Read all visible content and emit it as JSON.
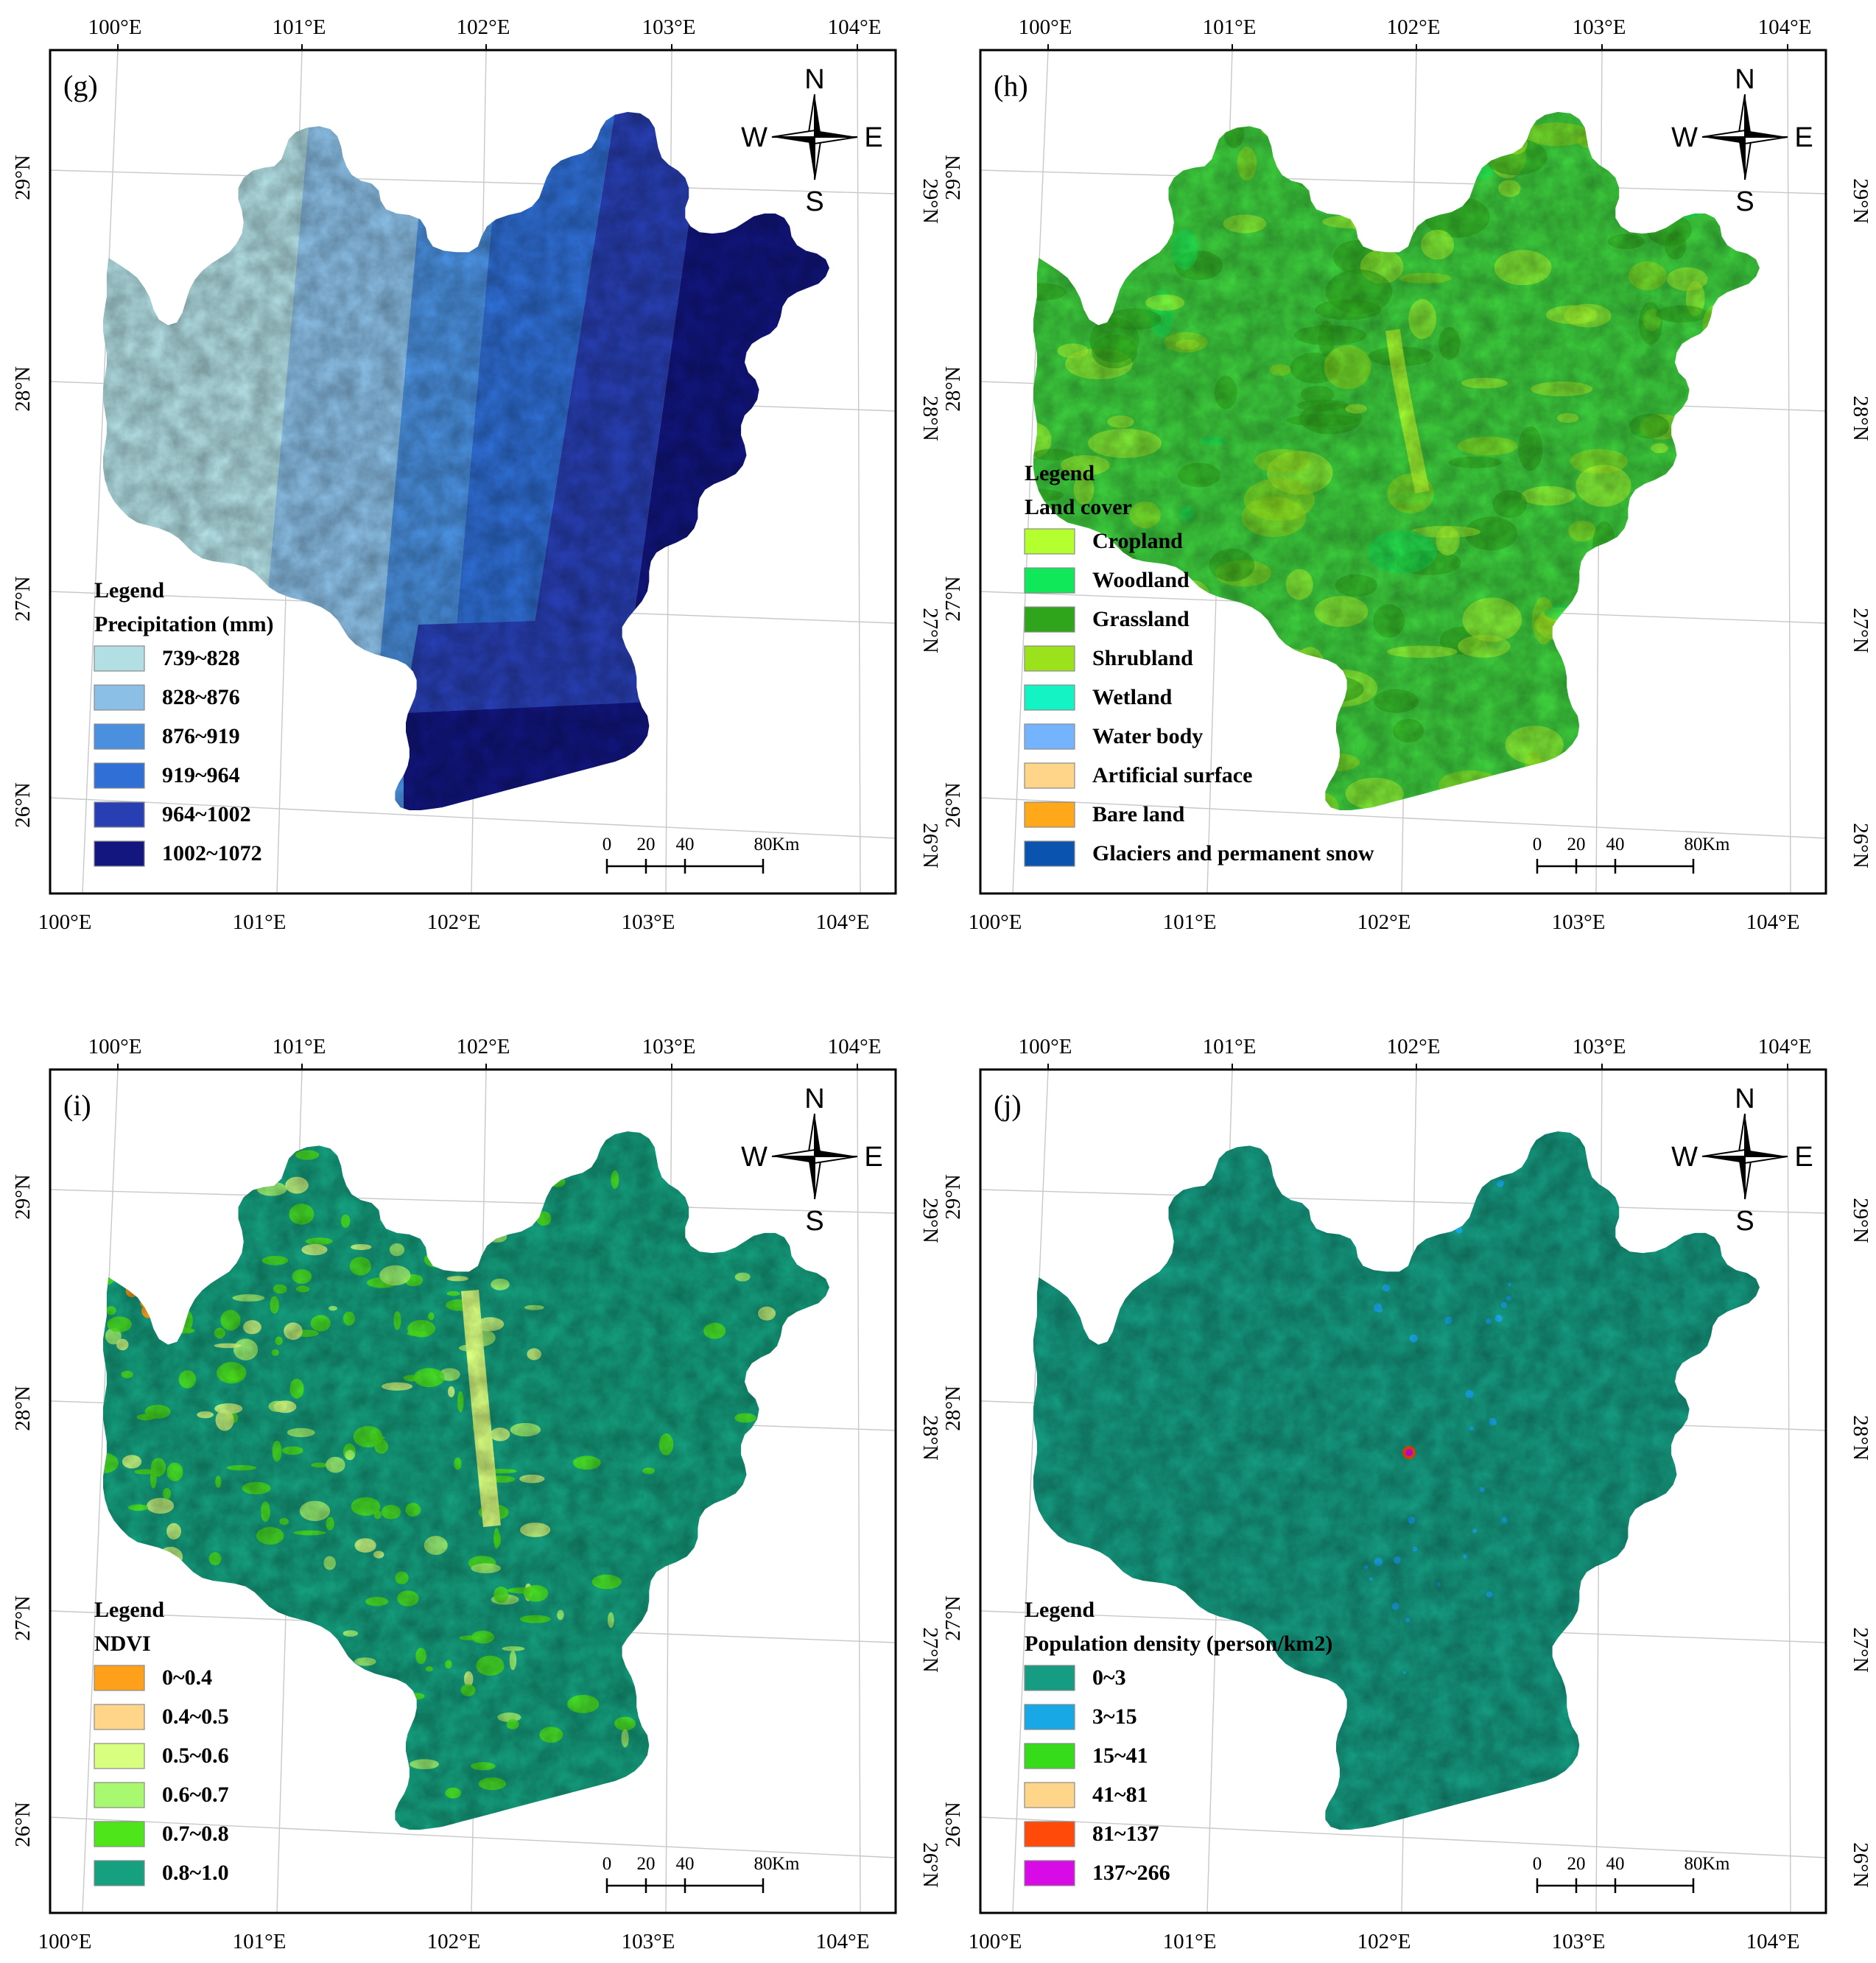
{
  "tick_labels": {
    "lon": [
      "100°E",
      "101°E",
      "102°E",
      "103°E",
      "104°E"
    ],
    "lat": [
      "26°N",
      "27°N",
      "28°N",
      "29°N"
    ]
  },
  "compass": {
    "n": "N",
    "s": "S",
    "e": "E",
    "w": "W"
  },
  "scale_bar": {
    "labels": [
      "0",
      "20",
      "40",
      "80"
    ],
    "unit": "Km"
  },
  "panels": [
    {
      "id": "g",
      "label": "(g)",
      "legend_heading": "Legend",
      "legend_title": "Precipitation  (mm)",
      "fill_pattern": "precipitation",
      "legend": [
        {
          "label": "739~828",
          "color": "#b2dfe4"
        },
        {
          "label": "828~876",
          "color": "#8bbfe6"
        },
        {
          "label": "876~919",
          "color": "#4a90df"
        },
        {
          "label": "919~964",
          "color": "#2f6fd6"
        },
        {
          "label": "964~1002",
          "color": "#283fb3"
        },
        {
          "label": "1002~1072",
          "color": "#12167e"
        }
      ]
    },
    {
      "id": "h",
      "label": "(h)",
      "legend_heading": "Legend",
      "legend_title": "Land cover",
      "fill_pattern": "landcover",
      "legend": [
        {
          "label": "Cropland",
          "color": "#b4ff2e"
        },
        {
          "label": "Woodland",
          "color": "#10e85a"
        },
        {
          "label": "Grassland",
          "color": "#2ea51a"
        },
        {
          "label": "Shrubland",
          "color": "#9be21c"
        },
        {
          "label": "Wetland",
          "color": "#12f4c4"
        },
        {
          "label": "Water body",
          "color": "#74b4ff"
        },
        {
          "label": "Artificial surface",
          "color": "#ffd58a"
        },
        {
          "label": "Bare land",
          "color": "#ffa81a"
        },
        {
          "label": "Glaciers and permanent snow",
          "color": "#0a54b0"
        }
      ]
    },
    {
      "id": "i",
      "label": "(i)",
      "legend_heading": "Legend",
      "legend_title": "NDVI",
      "fill_pattern": "ndvi",
      "legend": [
        {
          "label": "0~0.4",
          "color": "#ffa01a"
        },
        {
          "label": "0.4~0.5",
          "color": "#ffd58a"
        },
        {
          "label": "0.5~0.6",
          "color": "#d8ff80"
        },
        {
          "label": "0.6~0.7",
          "color": "#a8f870"
        },
        {
          "label": "0.7~0.8",
          "color": "#4ee61a"
        },
        {
          "label": "0.8~1.0",
          "color": "#15a07f"
        }
      ]
    },
    {
      "id": "j",
      "label": "(j)",
      "legend_heading": "Legend",
      "legend_title": "Population density  (person/km2)",
      "fill_pattern": "population",
      "legend": [
        {
          "label": "0~3",
          "color": "#169c82"
        },
        {
          "label": "3~15",
          "color": "#18a8e6"
        },
        {
          "label": "15~41",
          "color": "#36dc1a"
        },
        {
          "label": "41~81",
          "color": "#ffd58a"
        },
        {
          "label": "81~137",
          "color": "#ff4a0a"
        },
        {
          "label": "137~266",
          "color": "#d80ae6"
        }
      ]
    }
  ]
}
